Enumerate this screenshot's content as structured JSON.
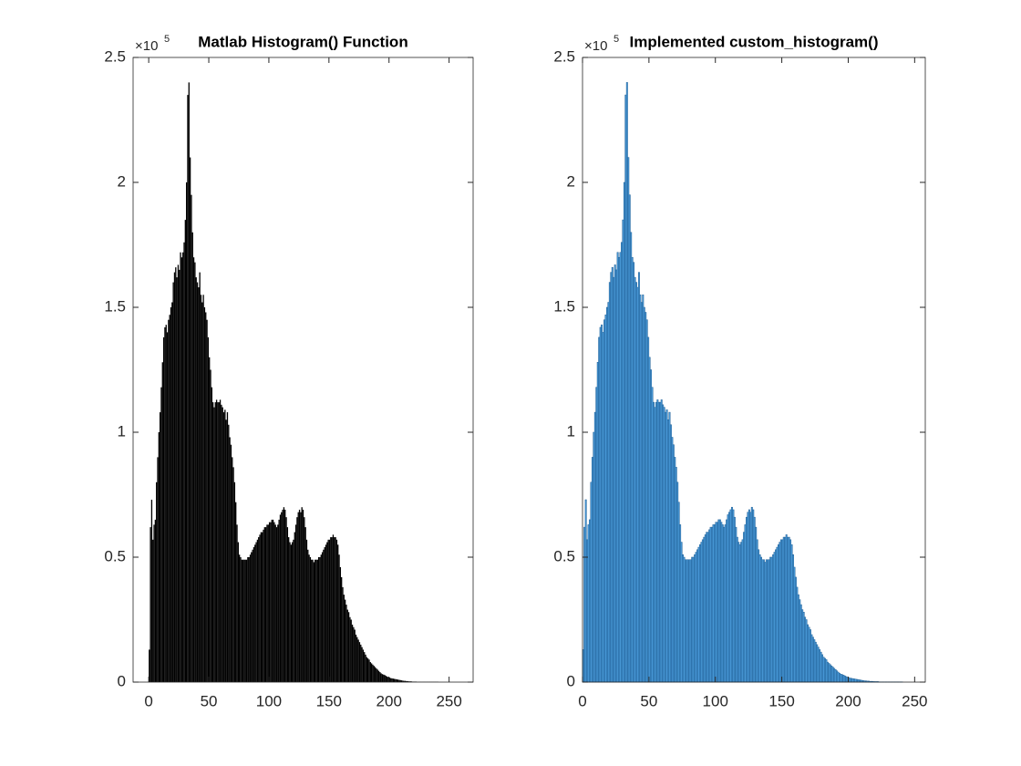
{
  "chart_data": [
    {
      "type": "histogram",
      "title": "Matlab Histogram() Function",
      "y_multiplier": "×10",
      "y_multiplier_exp": 5,
      "color": "#000000",
      "edgecolor": "#000000",
      "xlim": [
        -13,
        270
      ],
      "ylim": [
        0,
        2.5
      ],
      "xticks": [
        0,
        50,
        100,
        150,
        200,
        250
      ],
      "yticks": [
        0,
        0.5,
        1,
        1.5,
        2,
        2.5
      ],
      "bins": [
        0,
        1,
        2,
        3,
        4,
        5,
        6,
        7,
        8,
        9,
        10,
        11,
        12,
        13,
        14,
        15,
        16,
        17,
        18,
        19,
        20,
        21,
        22,
        23,
        24,
        25,
        26,
        27,
        28,
        29,
        30,
        31,
        32,
        33,
        34,
        35,
        36,
        37,
        38,
        39,
        40,
        41,
        42,
        43,
        44,
        45,
        46,
        47,
        48,
        49,
        50,
        51,
        52,
        53,
        54,
        55,
        56,
        57,
        58,
        59,
        60,
        61,
        62,
        63,
        64,
        65,
        66,
        67,
        68,
        69,
        70,
        71,
        72,
        73,
        74,
        75,
        76,
        77,
        78,
        79,
        80,
        81,
        82,
        83,
        84,
        85,
        86,
        87,
        88,
        89,
        90,
        91,
        92,
        93,
        94,
        95,
        96,
        97,
        98,
        99,
        100,
        101,
        102,
        103,
        104,
        105,
        106,
        107,
        108,
        109,
        110,
        111,
        112,
        113,
        114,
        115,
        116,
        117,
        118,
        119,
        120,
        121,
        122,
        123,
        124,
        125,
        126,
        127,
        128,
        129,
        130,
        131,
        132,
        133,
        134,
        135,
        136,
        137,
        138,
        139,
        140,
        141,
        142,
        143,
        144,
        145,
        146,
        147,
        148,
        149,
        150,
        151,
        152,
        153,
        154,
        155,
        156,
        157,
        158,
        159,
        160,
        161,
        162,
        163,
        164,
        165,
        166,
        167,
        168,
        169,
        170,
        171,
        172,
        173,
        174,
        175,
        176,
        177,
        178,
        179,
        180,
        181,
        182,
        183,
        184,
        185,
        186,
        187,
        188,
        189,
        190,
        191,
        192,
        193,
        194,
        195,
        196,
        197,
        198,
        199,
        200,
        201,
        202,
        203,
        204,
        205,
        206,
        207,
        208,
        209,
        210,
        211,
        212,
        213,
        214,
        215,
        216,
        217,
        218,
        219,
        220,
        221,
        222,
        223,
        224,
        225,
        226,
        227,
        228,
        229,
        230,
        231,
        232,
        233,
        234,
        235,
        236,
        237,
        238,
        239,
        240,
        241,
        242,
        243,
        244,
        245,
        246,
        247,
        248,
        249,
        250,
        251,
        252,
        253,
        254,
        255,
        256
      ],
      "values": [
        0.13,
        0.62,
        0.73,
        0.57,
        0.63,
        0.65,
        0.8,
        0.9,
        1.0,
        1.08,
        1.18,
        1.28,
        1.38,
        1.42,
        1.43,
        1.4,
        1.45,
        1.47,
        1.5,
        1.52,
        1.6,
        1.64,
        1.66,
        1.62,
        1.67,
        1.65,
        1.72,
        1.7,
        1.72,
        1.76,
        1.85,
        2.0,
        2.35,
        2.4,
        2.1,
        1.95,
        1.8,
        1.7,
        1.68,
        1.62,
        1.6,
        1.58,
        1.64,
        1.55,
        1.52,
        1.55,
        1.5,
        1.48,
        1.45,
        1.38,
        1.3,
        1.25,
        1.18,
        1.12,
        1.1,
        1.12,
        1.13,
        1.12,
        1.12,
        1.13,
        1.11,
        1.1,
        1.08,
        1.09,
        1.05,
        1.08,
        1.03,
        0.98,
        0.95,
        0.9,
        0.86,
        0.8,
        0.72,
        0.63,
        0.56,
        0.51,
        0.5,
        0.49,
        0.49,
        0.49,
        0.49,
        0.49,
        0.5,
        0.5,
        0.51,
        0.52,
        0.53,
        0.54,
        0.55,
        0.56,
        0.57,
        0.58,
        0.59,
        0.6,
        0.6,
        0.61,
        0.62,
        0.62,
        0.63,
        0.63,
        0.64,
        0.64,
        0.65,
        0.65,
        0.64,
        0.63,
        0.62,
        0.63,
        0.65,
        0.67,
        0.68,
        0.69,
        0.7,
        0.69,
        0.66,
        0.62,
        0.58,
        0.56,
        0.55,
        0.56,
        0.57,
        0.6,
        0.63,
        0.66,
        0.68,
        0.69,
        0.68,
        0.7,
        0.69,
        0.66,
        0.62,
        0.57,
        0.53,
        0.51,
        0.5,
        0.49,
        0.49,
        0.48,
        0.49,
        0.49,
        0.49,
        0.5,
        0.5,
        0.51,
        0.52,
        0.53,
        0.54,
        0.55,
        0.56,
        0.57,
        0.57,
        0.58,
        0.58,
        0.59,
        0.58,
        0.58,
        0.57,
        0.55,
        0.51,
        0.46,
        0.42,
        0.38,
        0.35,
        0.33,
        0.31,
        0.29,
        0.28,
        0.26,
        0.25,
        0.23,
        0.22,
        0.21,
        0.19,
        0.18,
        0.17,
        0.16,
        0.15,
        0.14,
        0.13,
        0.12,
        0.11,
        0.1,
        0.095,
        0.09,
        0.08,
        0.075,
        0.07,
        0.065,
        0.06,
        0.055,
        0.05,
        0.045,
        0.04,
        0.035,
        0.032,
        0.03,
        0.028,
        0.025,
        0.022,
        0.02,
        0.018,
        0.016,
        0.015,
        0.014,
        0.013,
        0.012,
        0.011,
        0.01,
        0.009,
        0.008,
        0.007,
        0.006,
        0.005,
        0.005,
        0.004,
        0.004,
        0.003,
        0.003,
        0.003,
        0.002,
        0.002,
        0.002,
        0.002,
        0.001,
        0.001,
        0.001,
        0.001,
        0.001,
        0.001,
        0.001,
        0.001,
        0.001,
        0.001,
        0.001,
        0.001,
        0.001,
        0.001,
        0.001,
        0.001,
        0.001,
        0.001,
        0,
        0,
        0,
        0,
        0,
        0,
        0,
        0,
        0,
        0,
        0,
        0,
        0,
        0,
        0
      ]
    },
    {
      "type": "histogram",
      "title": "Implemented custom_histogram()",
      "y_multiplier": "×10",
      "y_multiplier_exp": 5,
      "color": "#4a9ad8",
      "edgecolor": "#1f5f96",
      "xlim": [
        0,
        258
      ],
      "ylim": [
        0,
        2.5
      ],
      "xticks": [
        0,
        50,
        100,
        150,
        200,
        250
      ],
      "yticks": [
        0,
        0.5,
        1,
        1.5,
        2,
        2.5
      ],
      "bins": [
        0,
        1,
        2,
        3,
        4,
        5,
        6,
        7,
        8,
        9,
        10,
        11,
        12,
        13,
        14,
        15,
        16,
        17,
        18,
        19,
        20,
        21,
        22,
        23,
        24,
        25,
        26,
        27,
        28,
        29,
        30,
        31,
        32,
        33,
        34,
        35,
        36,
        37,
        38,
        39,
        40,
        41,
        42,
        43,
        44,
        45,
        46,
        47,
        48,
        49,
        50,
        51,
        52,
        53,
        54,
        55,
        56,
        57,
        58,
        59,
        60,
        61,
        62,
        63,
        64,
        65,
        66,
        67,
        68,
        69,
        70,
        71,
        72,
        73,
        74,
        75,
        76,
        77,
        78,
        79,
        80,
        81,
        82,
        83,
        84,
        85,
        86,
        87,
        88,
        89,
        90,
        91,
        92,
        93,
        94,
        95,
        96,
        97,
        98,
        99,
        100,
        101,
        102,
        103,
        104,
        105,
        106,
        107,
        108,
        109,
        110,
        111,
        112,
        113,
        114,
        115,
        116,
        117,
        118,
        119,
        120,
        121,
        122,
        123,
        124,
        125,
        126,
        127,
        128,
        129,
        130,
        131,
        132,
        133,
        134,
        135,
        136,
        137,
        138,
        139,
        140,
        141,
        142,
        143,
        144,
        145,
        146,
        147,
        148,
        149,
        150,
        151,
        152,
        153,
        154,
        155,
        156,
        157,
        158,
        159,
        160,
        161,
        162,
        163,
        164,
        165,
        166,
        167,
        168,
        169,
        170,
        171,
        172,
        173,
        174,
        175,
        176,
        177,
        178,
        179,
        180,
        181,
        182,
        183,
        184,
        185,
        186,
        187,
        188,
        189,
        190,
        191,
        192,
        193,
        194,
        195,
        196,
        197,
        198,
        199,
        200,
        201,
        202,
        203,
        204,
        205,
        206,
        207,
        208,
        209,
        210,
        211,
        212,
        213,
        214,
        215,
        216,
        217,
        218,
        219,
        220,
        221,
        222,
        223,
        224,
        225,
        226,
        227,
        228,
        229,
        230,
        231,
        232,
        233,
        234,
        235,
        236,
        237,
        238,
        239,
        240,
        241,
        242,
        243,
        244,
        245,
        246,
        247,
        248,
        249,
        250,
        251,
        252,
        253,
        254,
        255,
        256
      ],
      "values": [
        0.13,
        0.62,
        0.73,
        0.57,
        0.63,
        0.65,
        0.8,
        0.9,
        1.0,
        1.08,
        1.18,
        1.28,
        1.38,
        1.42,
        1.43,
        1.4,
        1.45,
        1.47,
        1.5,
        1.52,
        1.6,
        1.64,
        1.66,
        1.62,
        1.67,
        1.65,
        1.72,
        1.7,
        1.72,
        1.76,
        1.85,
        2.0,
        2.35,
        2.4,
        2.1,
        1.95,
        1.8,
        1.7,
        1.68,
        1.62,
        1.6,
        1.58,
        1.64,
        1.55,
        1.52,
        1.55,
        1.5,
        1.48,
        1.45,
        1.38,
        1.3,
        1.25,
        1.18,
        1.12,
        1.1,
        1.12,
        1.13,
        1.12,
        1.12,
        1.13,
        1.11,
        1.1,
        1.08,
        1.09,
        1.05,
        1.08,
        1.03,
        0.98,
        0.95,
        0.9,
        0.86,
        0.8,
        0.72,
        0.63,
        0.56,
        0.51,
        0.5,
        0.49,
        0.49,
        0.49,
        0.49,
        0.49,
        0.5,
        0.5,
        0.51,
        0.52,
        0.53,
        0.54,
        0.55,
        0.56,
        0.57,
        0.58,
        0.59,
        0.6,
        0.6,
        0.61,
        0.62,
        0.62,
        0.63,
        0.63,
        0.64,
        0.64,
        0.65,
        0.65,
        0.64,
        0.63,
        0.62,
        0.63,
        0.65,
        0.67,
        0.68,
        0.69,
        0.7,
        0.69,
        0.66,
        0.62,
        0.58,
        0.56,
        0.55,
        0.56,
        0.57,
        0.6,
        0.63,
        0.66,
        0.68,
        0.69,
        0.68,
        0.7,
        0.69,
        0.66,
        0.62,
        0.57,
        0.53,
        0.51,
        0.5,
        0.49,
        0.49,
        0.48,
        0.49,
        0.49,
        0.49,
        0.5,
        0.5,
        0.51,
        0.52,
        0.53,
        0.54,
        0.55,
        0.56,
        0.57,
        0.57,
        0.58,
        0.58,
        0.59,
        0.58,
        0.58,
        0.57,
        0.55,
        0.51,
        0.46,
        0.42,
        0.38,
        0.35,
        0.33,
        0.31,
        0.29,
        0.28,
        0.26,
        0.25,
        0.23,
        0.22,
        0.21,
        0.19,
        0.18,
        0.17,
        0.16,
        0.15,
        0.14,
        0.13,
        0.12,
        0.11,
        0.1,
        0.095,
        0.09,
        0.08,
        0.075,
        0.07,
        0.065,
        0.06,
        0.055,
        0.05,
        0.045,
        0.04,
        0.035,
        0.032,
        0.03,
        0.028,
        0.025,
        0.022,
        0.02,
        0.018,
        0.016,
        0.015,
        0.014,
        0.013,
        0.012,
        0.011,
        0.01,
        0.009,
        0.008,
        0.007,
        0.006,
        0.005,
        0.005,
        0.004,
        0.004,
        0.003,
        0.003,
        0.003,
        0.002,
        0.002,
        0.002,
        0.002,
        0.001,
        0.001,
        0.001,
        0.001,
        0.001,
        0.001,
        0.001,
        0.001,
        0.001,
        0.001,
        0.001,
        0.001,
        0.001,
        0.001,
        0.001,
        0.001,
        0.001,
        0.001,
        0,
        0,
        0,
        0,
        0,
        0,
        0,
        0,
        0,
        0,
        0,
        0,
        0,
        0,
        0
      ]
    }
  ]
}
